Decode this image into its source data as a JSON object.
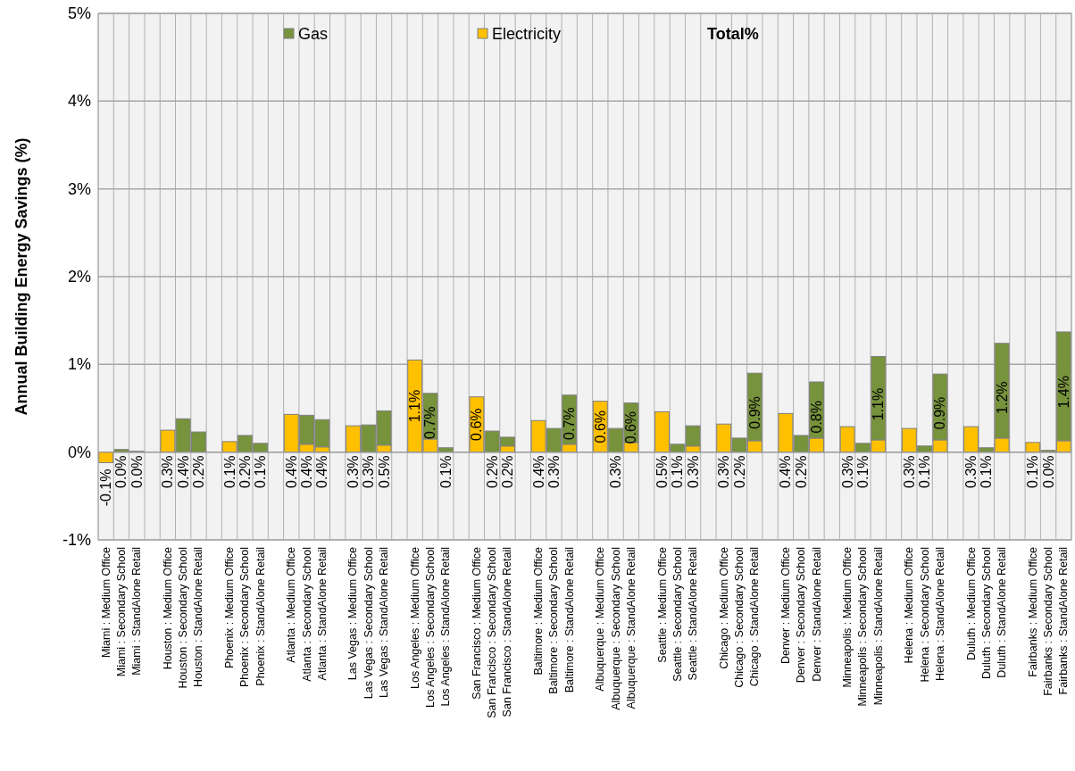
{
  "chart_data": {
    "type": "bar",
    "stacked": true,
    "ylabel": "Annual Building Energy Savings (%)",
    "categories": [
      "Miami : Medium Office",
      "Miami : Secondary School",
      "Miami : StandAlone Retail",
      null,
      "Houston : Medium Office",
      "Houston : Secondary School",
      "Houston : StandAlone Retail",
      null,
      "Phoenix : Medium Office",
      "Phoenix : Secondary School",
      "Phoenix : StandAlone Retail",
      null,
      "Atlanta : Medium Office",
      "Atlanta : Secondary School",
      "Atlanta : StandAlone Retail",
      null,
      "Las Vegas : Medium Office",
      "Las Vegas : Secondary School",
      "Las Vegas : StandAlone Retail",
      null,
      "Los Angeles : Medium Office",
      "Los Angeles : Secondary School",
      "Los Angeles : StandAlone Retail",
      null,
      "San Francisco : Medium Office",
      "San Francisco : Secondary School",
      "San Francisco : StandAlone Retail",
      null,
      "Baltimore : Medium Office",
      "Baltimore : Secondary School",
      "Baltimore : StandAlone Retail",
      null,
      "Albuquerque : Medium Office",
      "Albuquerque : Secondary School",
      "Albuquerque : StandAlone Retail",
      null,
      "Seattle : Medium Office",
      "Seattle : Secondary School",
      "Seattle : StandAlone Retail",
      null,
      "Chicago : Medium Office",
      "Chicago : Secondary School",
      "Chicago : StandAlone Retail",
      null,
      "Denver : Medium Office",
      "Denver : Secondary School",
      "Denver : StandAlone Retail",
      null,
      "Minneapolis : Medium Office",
      "Minneapolis : Secondary School",
      "Minneapolis : StandAlone Retail",
      null,
      "Helena : Medium Office",
      "Helena : Secondary School",
      "Helena : StandAlone Retail",
      null,
      "Duluth : Medium Office",
      "Duluth : Secondary School",
      "Duluth : StandAlone Retail",
      null,
      "Fairbanks : Medium Office",
      "Fairbanks : Secondary School",
      "Fairbanks : StandAlone Retail"
    ],
    "series": [
      {
        "name": "Electricity",
        "color": "#ffc000",
        "values": [
          -0.12,
          null,
          null,
          null,
          0.25,
          null,
          null,
          null,
          0.12,
          null,
          null,
          null,
          0.43,
          0.09,
          0.06,
          null,
          0.3,
          null,
          0.08,
          null,
          1.05,
          0.15,
          null,
          null,
          0.63,
          null,
          0.07,
          null,
          0.36,
          null,
          0.09,
          null,
          0.58,
          null,
          0.11,
          null,
          0.46,
          null,
          0.07,
          null,
          0.32,
          null,
          0.13,
          null,
          0.44,
          null,
          0.16,
          null,
          0.29,
          null,
          0.14,
          null,
          0.27,
          null,
          0.14,
          null,
          0.29,
          null,
          0.16,
          null,
          0.11,
          null,
          0.13
        ]
      },
      {
        "name": "Gas",
        "color": "#77933c",
        "values": [
          null,
          0.03,
          0.01,
          null,
          null,
          0.38,
          0.23,
          null,
          null,
          0.19,
          0.1,
          null,
          null,
          0.33,
          0.31,
          null,
          null,
          0.31,
          0.39,
          null,
          null,
          0.52,
          0.05,
          null,
          null,
          0.24,
          0.1,
          null,
          null,
          0.27,
          0.56,
          null,
          null,
          0.27,
          0.45,
          null,
          null,
          0.09,
          0.23,
          null,
          null,
          0.16,
          0.77,
          null,
          null,
          0.19,
          0.64,
          null,
          null,
          0.1,
          0.95,
          null,
          null,
          0.07,
          0.75,
          null,
          null,
          0.05,
          1.08,
          null,
          null,
          0.02,
          1.24
        ]
      }
    ],
    "legend_title": "Total%",
    "totals": [
      "-0.1%",
      "0.0%",
      "0.0%",
      null,
      "0.3%",
      "0.4%",
      "0.2%",
      null,
      "0.1%",
      "0.2%",
      "0.1%",
      null,
      "0.4%",
      "0.4%",
      "0.4%",
      null,
      "0.3%",
      "0.3%",
      "0.5%",
      null,
      "1.1%",
      "0.7%",
      "0.1%",
      null,
      "0.6%",
      "0.2%",
      "0.2%",
      null,
      "0.4%",
      "0.3%",
      "0.7%",
      null,
      "0.6%",
      "0.3%",
      "0.6%",
      null,
      "0.5%",
      "0.1%",
      "0.3%",
      null,
      "0.3%",
      "0.2%",
      "0.9%",
      null,
      "0.4%",
      "0.2%",
      "0.8%",
      null,
      "0.3%",
      "0.1%",
      "1.1%",
      null,
      "0.3%",
      "0.1%",
      "0.9%",
      null,
      "0.3%",
      "0.1%",
      "1.2%",
      null,
      "0.1%",
      "0.0%",
      "1.4%"
    ],
    "ylim": [
      -1,
      5
    ],
    "yticks": [
      {
        "value": -1,
        "label": "-1%"
      },
      {
        "value": 0,
        "label": "0%"
      },
      {
        "value": 1,
        "label": "1%"
      },
      {
        "value": 2,
        "label": "2%"
      },
      {
        "value": 3,
        "label": "3%"
      },
      {
        "value": 4,
        "label": "4%"
      },
      {
        "value": 5,
        "label": "5%"
      }
    ],
    "grid": true,
    "legend": "top"
  }
}
